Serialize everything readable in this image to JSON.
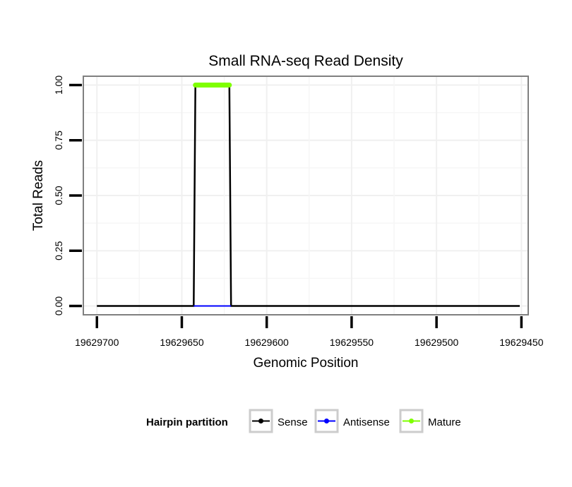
{
  "chart_data": {
    "type": "line",
    "title": "Small RNA-seq Read Density",
    "xlabel": "Genomic Position",
    "ylabel": "Total Reads",
    "x_reversed": true,
    "xlim": [
      19629708,
      19629446
    ],
    "ylim": [
      -0.04,
      1.04
    ],
    "x_ticks": [
      19629700,
      19629650,
      19629600,
      19629550,
      19629500,
      19629450
    ],
    "x_tick_labels": [
      "19629700",
      "19629650",
      "19629600",
      "19629550",
      "19629500",
      "19629450"
    ],
    "y_ticks": [
      0,
      0.25,
      0.5,
      0.75,
      1
    ],
    "y_tick_labels": [
      "0.00",
      "0.25",
      "0.50",
      "0.75",
      "1.00"
    ],
    "grid": true,
    "series": [
      {
        "name": "Sense",
        "color": "#000000",
        "x": [
          19629700,
          19629643,
          19629642,
          19629622,
          19629621,
          19629451
        ],
        "y": [
          0,
          0,
          1,
          1,
          0,
          0
        ]
      },
      {
        "name": "Antisense",
        "color": "#0000ff",
        "x": [
          19629643,
          19629621
        ],
        "y": [
          0,
          0
        ]
      },
      {
        "name": "Mature",
        "color": "#7fff00",
        "x": [
          19629642,
          19629622
        ],
        "y": [
          1,
          1
        ]
      }
    ],
    "legend": {
      "title": "Hairpin partition",
      "position": "bottom",
      "entries": [
        "Sense",
        "Antisense",
        "Mature"
      ]
    }
  }
}
